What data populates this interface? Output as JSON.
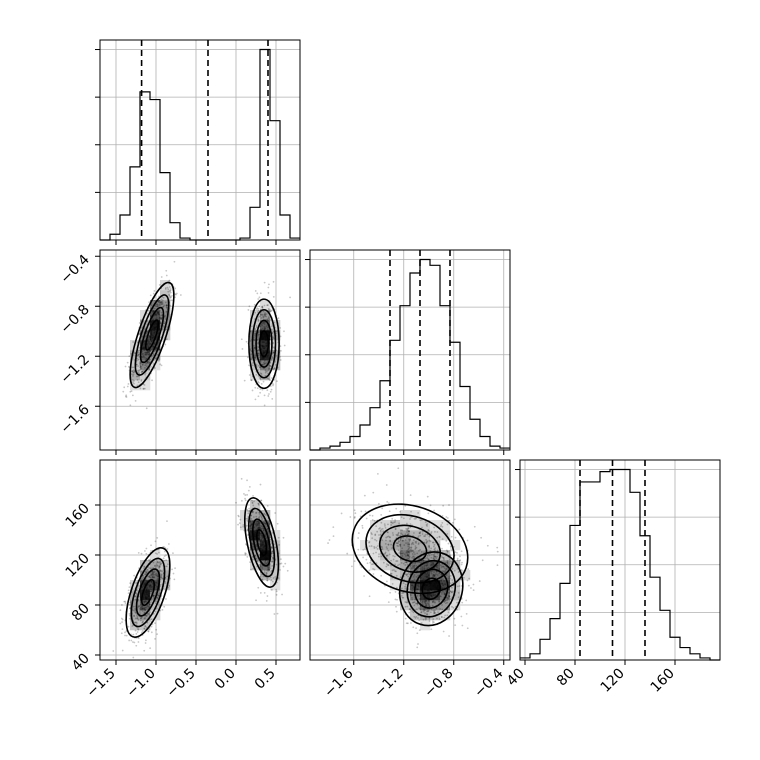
{
  "chart_data": {
    "type": "corner",
    "parameters": [
      {
        "range": [
          -1.7,
          0.8
        ],
        "ticks": [
          -1.5,
          -1.0,
          -0.5,
          0.0,
          0.5
        ],
        "tick_labels": [
          "−1.5",
          "−1.0",
          "−0.5",
          "0.0",
          "0.5"
        ]
      },
      {
        "range": [
          -1.95,
          -0.35
        ],
        "ticks": [
          -1.6,
          -1.2,
          -0.8,
          -0.4
        ],
        "tick_labels": [
          "−1.6",
          "−1.2",
          "−0.8",
          "−0.4"
        ]
      },
      {
        "range": [
          36,
          196
        ],
        "ticks": [
          40,
          80,
          120,
          160
        ],
        "tick_labels": [
          "40",
          "80",
          "120",
          "160"
        ]
      }
    ],
    "grid": true,
    "histograms": [
      {
        "param": 0,
        "bin_edges": [
          -1.7,
          -1.575,
          -1.45,
          -1.325,
          -1.2,
          -1.075,
          -0.95,
          -0.825,
          -0.7,
          -0.575,
          -0.45,
          -0.325,
          -0.2,
          -0.075,
          0.05,
          0.175,
          0.3,
          0.425,
          0.55,
          0.675,
          0.8
        ],
        "counts": [
          0,
          0.03,
          0.13,
          0.38,
          0.77,
          0.73,
          0.35,
          0.09,
          0.01,
          0,
          0,
          0,
          0,
          0,
          0.01,
          0.17,
          0.99,
          0.62,
          0.13,
          0.01
        ],
        "quantiles": [
          -1.18,
          -0.35,
          0.4
        ]
      },
      {
        "param": 1,
        "bin_edges": [
          -1.95,
          -1.87,
          -1.79,
          -1.71,
          -1.63,
          -1.55,
          -1.47,
          -1.39,
          -1.31,
          -1.23,
          -1.15,
          -1.07,
          -0.99,
          -0.91,
          -0.83,
          -0.75,
          -0.67,
          -0.59,
          -0.51,
          -0.43,
          -0.35
        ],
        "counts": [
          0,
          0.01,
          0.02,
          0.04,
          0.07,
          0.13,
          0.22,
          0.36,
          0.57,
          0.75,
          0.92,
          0.99,
          0.96,
          0.75,
          0.56,
          0.33,
          0.16,
          0.07,
          0.02,
          0.01
        ],
        "quantiles": [
          -1.31,
          -1.07,
          -0.83
        ]
      },
      {
        "param": 2,
        "bin_edges": [
          36,
          44,
          52,
          60,
          68,
          76,
          84,
          92,
          100,
          108,
          116,
          124,
          132,
          140,
          148,
          156,
          164,
          172,
          180,
          188,
          196
        ],
        "counts": [
          0.01,
          0.03,
          0.1,
          0.2,
          0.37,
          0.65,
          0.86,
          0.86,
          0.91,
          0.92,
          0.92,
          0.81,
          0.6,
          0.4,
          0.24,
          0.11,
          0.06,
          0.03,
          0.01,
          0
        ],
        "quantiles": [
          84,
          110,
          136
        ]
      }
    ],
    "pair_panels": [
      {
        "x_param": 0,
        "y_param": 1,
        "clusters": [
          {
            "center": [
              -1.05,
              -1.03
            ],
            "sd": [
              0.13,
              0.2
            ],
            "rho": 0.75,
            "weight": 0.55
          },
          {
            "center": [
              0.35,
              -1.1
            ],
            "sd": [
              0.09,
              0.17
            ],
            "rho": 0.0,
            "weight": 0.45
          }
        ]
      },
      {
        "x_param": 0,
        "y_param": 2,
        "clusters": [
          {
            "center": [
              -1.1,
              90
            ],
            "sd": [
              0.13,
              17
            ],
            "rho": 0.6,
            "weight": 0.5
          },
          {
            "center": [
              0.32,
              130
            ],
            "sd": [
              0.1,
              17
            ],
            "rho": -0.5,
            "weight": 0.5
          }
        ]
      },
      {
        "x_param": 1,
        "y_param": 2,
        "clusters": [
          {
            "center": [
              -1.15,
              125
            ],
            "sd": [
              0.22,
              17
            ],
            "rho": -0.2,
            "weight": 0.5
          },
          {
            "center": [
              -0.98,
              93
            ],
            "sd": [
              0.12,
              14
            ],
            "rho": 0.1,
            "weight": 0.5
          }
        ]
      }
    ]
  }
}
